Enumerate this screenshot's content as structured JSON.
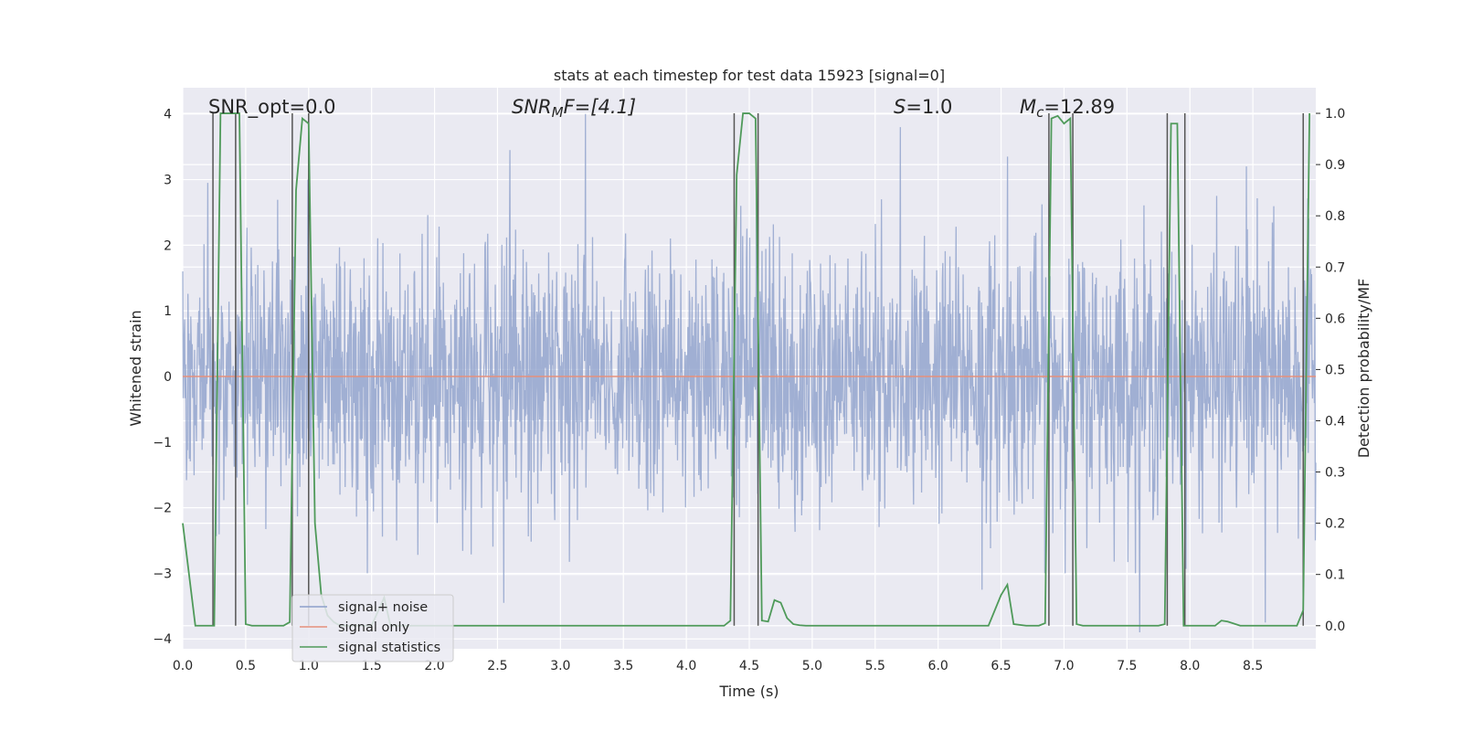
{
  "chart_data": {
    "type": "line",
    "title": "stats at each timestep for test data 15923 [signal=0]",
    "xlabel": "Time (s)",
    "ylabel": "Whitened strain",
    "y2label": "Detection probability/MF",
    "xlim": [
      0,
      9.0
    ],
    "ylim": [
      -4.15,
      4.4
    ],
    "y2lim": [
      -0.045,
      1.05
    ],
    "xticks": [
      "0.0",
      "0.5",
      "1.0",
      "1.5",
      "2.0",
      "2.5",
      "3.0",
      "3.5",
      "4.0",
      "4.5",
      "5.0",
      "5.5",
      "6.0",
      "6.5",
      "7.0",
      "7.5",
      "8.0",
      "8.5"
    ],
    "yticks": [
      "4",
      "3",
      "2",
      "1",
      "0",
      "−1",
      "−2",
      "−3",
      "−4"
    ],
    "y2ticks": [
      "1.0",
      "0.9",
      "0.8",
      "0.7",
      "0.6",
      "0.5",
      "0.4",
      "0.3",
      "0.2",
      "0.1",
      "0.0"
    ],
    "grid": true,
    "legend_position": "lower-left",
    "annotations": {
      "snr_opt": "SNR_opt=0.0",
      "snr_mf": "SNR",
      "snr_mf_sub": "M",
      "snr_mf_rest": "F=[4.1]",
      "s_italic": "S",
      "s_rest": "=1.0",
      "mc_italic": "M",
      "mc_sub": "c",
      "mc_rest": "=12.89"
    },
    "series": [
      {
        "name": "signal+ noise",
        "axis": "left",
        "color": "#8da0cb",
        "style": "dense noise, approx. gaussian, amplitude mostly within ±2.5 with spikes to about ±3.9",
        "spikes": [
          [
            0.2,
            2.95
          ],
          [
            2.6,
            3.45
          ],
          [
            3.2,
            4.0
          ],
          [
            5.7,
            3.8
          ],
          [
            6.35,
            3.6
          ],
          [
            6.55,
            3.35
          ],
          [
            8.45,
            3.2
          ],
          [
            1.7,
            -2.5
          ],
          [
            2.55,
            -3.45
          ],
          [
            6.35,
            -3.25
          ],
          [
            8.6,
            -3.75
          ],
          [
            7.6,
            -3.9
          ]
        ]
      },
      {
        "name": "signal only",
        "axis": "left",
        "color": "#e5907d",
        "x": [
          0,
          9.0
        ],
        "y": [
          0,
          0
        ]
      },
      {
        "name": "signal statistics",
        "axis": "right",
        "color": "#4f9a5a",
        "x": [
          0.0,
          0.05,
          0.1,
          0.15,
          0.2,
          0.25,
          0.3,
          0.35,
          0.4,
          0.45,
          0.5,
          0.55,
          0.6,
          0.65,
          0.7,
          0.75,
          0.8,
          0.85,
          0.9,
          0.95,
          1.0,
          1.05,
          1.1,
          1.15,
          1.2,
          1.25,
          1.3,
          1.4,
          1.5,
          1.6,
          1.65,
          1.7,
          1.8,
          2.0,
          2.5,
          3.0,
          3.5,
          4.0,
          4.25,
          4.3,
          4.35,
          4.4,
          4.45,
          4.5,
          4.55,
          4.6,
          4.65,
          4.7,
          4.75,
          4.8,
          4.85,
          4.9,
          4.95,
          5.0,
          5.5,
          6.0,
          6.3,
          6.4,
          6.5,
          6.55,
          6.6,
          6.7,
          6.75,
          6.8,
          6.85,
          6.9,
          6.95,
          7.0,
          7.05,
          7.1,
          7.15,
          7.2,
          7.5,
          7.75,
          7.8,
          7.85,
          7.9,
          7.95,
          8.0,
          8.05,
          8.1,
          8.15,
          8.2,
          8.25,
          8.3,
          8.4,
          8.5,
          8.6,
          8.7,
          8.8,
          8.85,
          8.9,
          8.95
        ],
        "y": [
          0.2,
          0.1,
          0.0,
          0.0,
          0.0,
          0.0,
          1.0,
          1.0,
          1.0,
          1.0,
          0.003,
          0.0,
          0.0,
          0.0,
          0.0,
          0.0,
          0.0,
          0.007,
          0.85,
          0.99,
          0.98,
          0.2,
          0.06,
          0.02,
          0.007,
          0.0,
          0.0,
          0.0,
          0.0,
          0.055,
          0.0,
          0.0,
          0.0,
          0.0,
          0.0,
          0.0,
          0.0,
          0.0,
          0.0,
          0.0,
          0.01,
          0.88,
          1.0,
          1.0,
          0.99,
          0.01,
          0.008,
          0.05,
          0.045,
          0.015,
          0.003,
          0.001,
          0.0,
          0.0,
          0.0,
          0.0,
          0.0,
          0.0,
          0.06,
          0.08,
          0.003,
          0.0,
          0.0,
          0.0,
          0.005,
          0.99,
          0.995,
          0.98,
          0.99,
          0.003,
          0.0,
          0.0,
          0.0,
          0.0,
          0.003,
          0.98,
          0.98,
          0.0,
          0.0,
          0.0,
          0.0,
          0.0,
          0.0,
          0.01,
          0.008,
          0.0,
          0.0,
          0.0,
          0.0,
          0.0,
          0.0,
          0.03,
          1.0
        ]
      }
    ],
    "vertical_markers": {
      "color": "#555555",
      "x": [
        0.24,
        0.42,
        0.87,
        1.0,
        4.38,
        4.57,
        6.88,
        7.07,
        7.82,
        7.96,
        8.9
      ]
    }
  }
}
